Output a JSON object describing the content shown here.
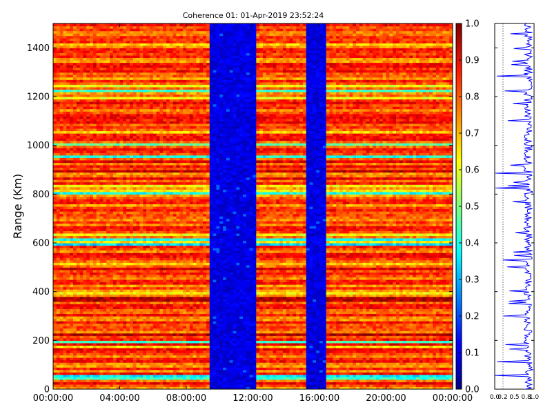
{
  "chart_data": {
    "type": "heatmap",
    "title": "Coherence 01: 01-Apr-2019 23:52:24",
    "ylabel": "Range (Km)",
    "xlabel": "",
    "x_ticks": [
      "00:00:00",
      "04:00:00",
      "08:00:00",
      "12:00:00",
      "16:00:00",
      "20:00:00",
      "00:00:00"
    ],
    "x_range_hours": [
      0,
      24
    ],
    "y_ticks": [
      "0",
      "200",
      "400",
      "600",
      "800",
      "1000",
      "1200",
      "1400"
    ],
    "y_range_km": [
      0,
      1500
    ],
    "colorbar": {
      "colormap": "jet",
      "range": [
        0.0,
        1.0
      ],
      "ticks": [
        "0.0",
        "0.1",
        "0.2",
        "0.3",
        "0.4",
        "0.5",
        "0.6",
        "0.7",
        "0.8",
        "0.9",
        "1.0"
      ]
    },
    "low_coherence_time_windows_hours": [
      [
        9.4,
        12.1
      ],
      [
        15.2,
        16.3
      ]
    ],
    "typical_coherence_in_active_windows": 0.8,
    "typical_coherence_in_gaps": 0.08,
    "profile_panel": {
      "type": "line",
      "series_color": "#0000ff",
      "x_ticks": [
        "0.0",
        "0.2",
        "0.5",
        "0.8",
        "1.0"
      ],
      "x_range": [
        0,
        1
      ],
      "y_range_km": [
        0,
        1500
      ],
      "typical_value": 0.85
    }
  }
}
